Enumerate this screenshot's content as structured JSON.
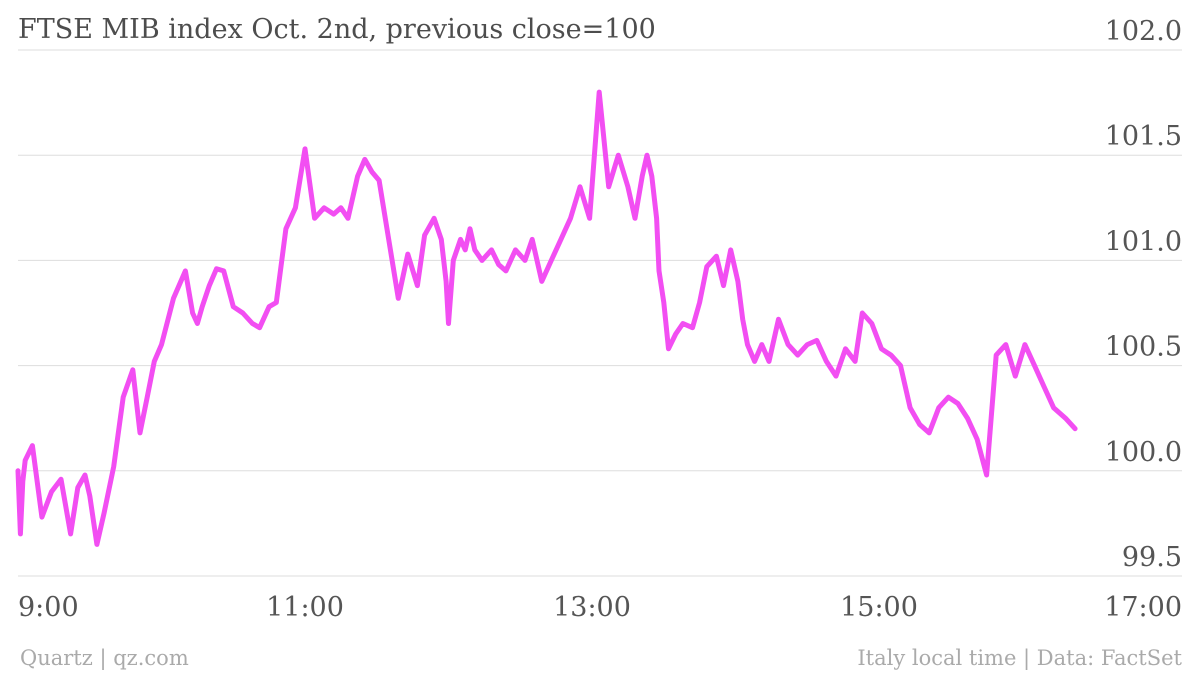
{
  "title": "FTSE MIB index Oct. 2nd, previous close=100",
  "footer": {
    "source_left": "Quartz | qz.com",
    "source_right": "Italy local time | Data: FactSet"
  },
  "colors": {
    "line": "#f24ef2",
    "grid": "#dddddd",
    "text": "#555555",
    "footer": "#aaaaaa"
  },
  "chart_data": {
    "type": "line",
    "title": "FTSE MIB index Oct. 2nd, previous close=100",
    "xlabel": "",
    "ylabel": "",
    "x_unit": "Italy local time",
    "xlim": [
      "9:00",
      "17:00"
    ],
    "ylim": [
      99.5,
      102.0
    ],
    "y_axis_side": "right",
    "grid": "horizontal",
    "legend": "none",
    "x_ticks": [
      "9:00",
      "11:00",
      "13:00",
      "15:00",
      "17:00"
    ],
    "y_ticks": [
      "99.5",
      "100.0",
      "100.5",
      "101.0",
      "101.5",
      "102.0"
    ],
    "series": [
      {
        "x": [
          "9:00",
          "9:01",
          "9:02",
          "9:03",
          "9:06",
          "9:10",
          "9:14",
          "9:18",
          "9:22",
          "9:25",
          "9:28",
          "9:30",
          "9:33",
          "9:36",
          "9:40",
          "9:44",
          "9:48",
          "9:51",
          "9:54",
          "9:57",
          "10:00",
          "10:05",
          "10:10",
          "10:13",
          "10:15",
          "10:17",
          "10:20",
          "10:23",
          "10:26",
          "10:30",
          "10:34",
          "10:38",
          "10:41",
          "10:45",
          "10:48",
          "10:52",
          "10:56",
          "11:00",
          "11:04",
          "11:08",
          "11:12",
          "11:15",
          "11:18",
          "11:20",
          "11:22",
          "11:25",
          "11:28",
          "11:31",
          "11:35",
          "11:39",
          "11:43",
          "11:47",
          "11:50",
          "11:54",
          "11:57",
          "11:59",
          "12:00",
          "12:02",
          "12:05",
          "12:07",
          "12:09",
          "12:11",
          "12:14",
          "12:18",
          "12:21",
          "12:24",
          "12:28",
          "12:32",
          "12:35",
          "12:39",
          "12:43",
          "12:47",
          "12:51",
          "12:55",
          "12:59",
          "13:03",
          "13:07",
          "13:11",
          "13:15",
          "13:18",
          "13:21",
          "13:23",
          "13:25",
          "13:26",
          "13:27",
          "13:28",
          "13:30",
          "13:32",
          "13:35",
          "13:38",
          "13:42",
          "13:45",
          "13:48",
          "13:52",
          "13:55",
          "13:58",
          "14:01",
          "14:03",
          "14:05",
          "14:08",
          "14:11",
          "14:14",
          "14:18",
          "14:22",
          "14:26",
          "14:30",
          "14:34",
          "14:38",
          "14:42",
          "14:46",
          "14:50",
          "14:53",
          "14:57",
          "15:01",
          "15:05",
          "15:09",
          "15:13",
          "15:17",
          "15:21",
          "15:25",
          "15:29",
          "15:33",
          "15:37",
          "15:41",
          "15:45",
          "15:49",
          "15:53",
          "15:57",
          "16:01",
          "16:05",
          "16:09",
          "16:13",
          "16:18",
          "16:22"
        ],
        "y": [
          100.0,
          99.7,
          99.95,
          100.05,
          100.12,
          99.78,
          99.9,
          99.96,
          99.7,
          99.92,
          99.98,
          99.88,
          99.65,
          99.8,
          100.02,
          100.35,
          100.48,
          100.18,
          100.35,
          100.52,
          100.6,
          100.82,
          100.95,
          100.75,
          100.7,
          100.78,
          100.88,
          100.96,
          100.95,
          100.78,
          100.75,
          100.7,
          100.68,
          100.78,
          100.8,
          101.15,
          101.25,
          101.53,
          101.2,
          101.25,
          101.22,
          101.25,
          101.2,
          101.3,
          101.4,
          101.48,
          101.42,
          101.38,
          101.1,
          100.82,
          101.03,
          100.88,
          101.12,
          101.2,
          101.1,
          100.9,
          100.7,
          101.0,
          101.1,
          101.05,
          101.15,
          101.05,
          101.0,
          101.05,
          100.98,
          100.95,
          101.05,
          101.0,
          101.1,
          100.9,
          101.0,
          101.1,
          101.2,
          101.35,
          101.2,
          101.8,
          101.35,
          101.5,
          101.35,
          101.2,
          101.4,
          101.5,
          101.4,
          101.3,
          101.2,
          100.95,
          100.8,
          100.58,
          100.65,
          100.7,
          100.68,
          100.8,
          100.97,
          101.02,
          100.88,
          101.05,
          100.9,
          100.72,
          100.6,
          100.52,
          100.6,
          100.52,
          100.72,
          100.6,
          100.55,
          100.6,
          100.62,
          100.52,
          100.45,
          100.58,
          100.52,
          100.75,
          100.7,
          100.58,
          100.55,
          100.5,
          100.3,
          100.22,
          100.18,
          100.3,
          100.35,
          100.32,
          100.25,
          100.15,
          99.98,
          100.55,
          100.6,
          100.45,
          100.6,
          100.5,
          100.4,
          100.3,
          100.25,
          100.2
        ],
        "note": ""
      }
    ]
  }
}
